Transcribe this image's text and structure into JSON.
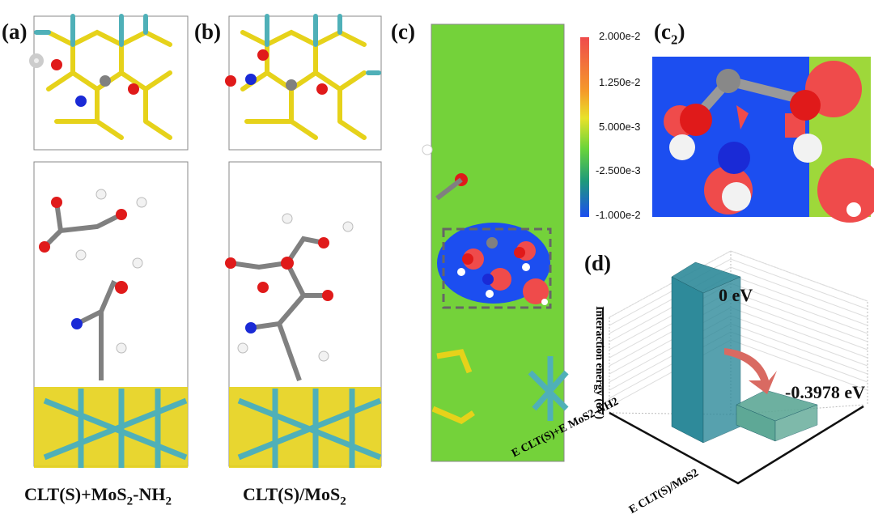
{
  "panels": {
    "a": {
      "label": "(a)",
      "caption_main": "CLT(S)+MoS",
      "caption_sub": "2",
      "caption_tail": "-NH",
      "caption_sub2": "2"
    },
    "b": {
      "label": "(b)",
      "caption_main": "CLT(S)/MoS",
      "caption_sub": "2"
    },
    "c": {
      "label": "(c)"
    },
    "c2": {
      "label_main": "(c",
      "label_sub": "2",
      "label_tail": ")"
    },
    "d": {
      "label": "(d)"
    }
  },
  "colorbar": {
    "ticks": [
      "2.000e-2",
      "1.250e-2",
      "5.000e-3",
      "-2.500e-3",
      "-1.000e-2"
    ],
    "colors": [
      "#ef4b4b",
      "#f59a2a",
      "#e8e22a",
      "#6ad43a",
      "#1e9a7a",
      "#1c4ef0"
    ]
  },
  "colors": {
    "bar1": "#2e8a9a",
    "bar2": "#5ea896",
    "arrow": "#d96a62",
    "S": "#e6d21a",
    "Mo": "#4fb0b8",
    "O": "#e01a1a",
    "N": "#1a2ad6",
    "C": "#808080",
    "H": "#f2f2f2"
  },
  "chart_data": {
    "type": "bar",
    "style": "3d",
    "categories": [
      "E CLT(S)+E MoS2-NH2",
      "E CLT(S)/MoS2"
    ],
    "values": [
      0,
      -0.3978
    ],
    "data_labels": [
      "0 eV",
      "-0.3978 eV"
    ],
    "ylabel": "Interaction energy (eV)",
    "grid": true
  }
}
